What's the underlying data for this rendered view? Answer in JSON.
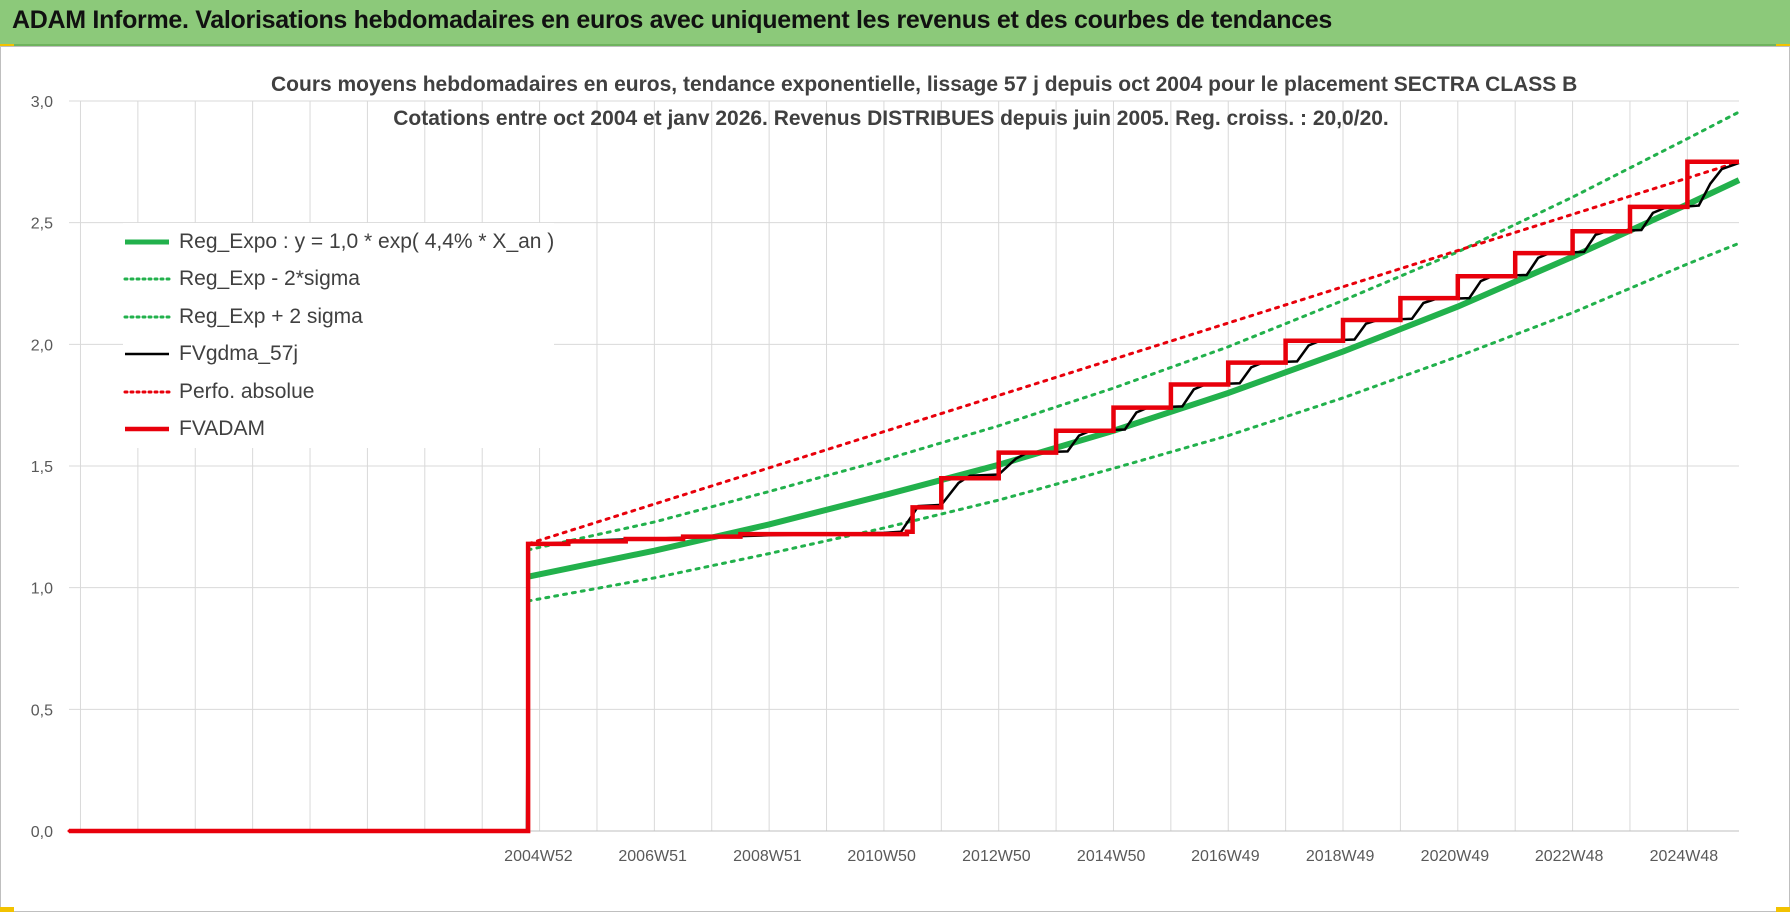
{
  "header": {
    "title": "ADAM Informe. Valorisations hebdomadaires en euros avec uniquement les revenus et des courbes de tendances"
  },
  "chart_data": {
    "type": "line",
    "title": "Cours moyens hebdomadaires en euros, tendance exponentielle, lissage 57 j depuis oct 2004 pour le placement SECTRA CLASS B",
    "subtitle": "Cotations entre oct 2004 et janv 2026. Revenus DISTRIBUES depuis juin 2005. Reg. croiss. : 20,0/20.",
    "xlabel": "",
    "ylabel": "",
    "ylim": [
      0,
      3
    ],
    "xlim": [
      1996.8,
      2025.9
    ],
    "y_ticks": [
      "0,0",
      "0,5",
      "1,0",
      "1,5",
      "2,0",
      "2,5",
      "3,0"
    ],
    "x_tick_labels": [
      {
        "label": "2004W52",
        "x": 2004.98
      },
      {
        "label": "2006W51",
        "x": 2006.97
      },
      {
        "label": "2008W51",
        "x": 2008.97
      },
      {
        "label": "2010W50",
        "x": 2010.96
      },
      {
        "label": "2012W50",
        "x": 2012.96
      },
      {
        "label": "2014W50",
        "x": 2014.96
      },
      {
        "label": "2016W49",
        "x": 2016.95
      },
      {
        "label": "2018W49",
        "x": 2018.95
      },
      {
        "label": "2020W49",
        "x": 2020.95
      },
      {
        "label": "2022W48",
        "x": 2022.94
      },
      {
        "label": "2024W48",
        "x": 2024.94
      }
    ],
    "grid": true,
    "legend_position": "top-left",
    "series": [
      {
        "name": "Reg_Expo : y = 1,0 * exp( 4,4% *  X_an )",
        "color": "#22b14c",
        "style": "solid-thick",
        "points": [
          [
            2004.8,
            1.045
          ],
          [
            2007.0,
            1.152
          ],
          [
            2009.0,
            1.26
          ],
          [
            2011.0,
            1.38
          ],
          [
            2013.0,
            1.505
          ],
          [
            2015.0,
            1.645
          ],
          [
            2017.0,
            1.8
          ],
          [
            2019.0,
            1.97
          ],
          [
            2021.0,
            2.155
          ],
          [
            2023.0,
            2.36
          ],
          [
            2025.0,
            2.575
          ],
          [
            2025.9,
            2.675
          ]
        ]
      },
      {
        "name": "Reg_Exp - 2*sigma",
        "color": "#22b14c",
        "style": "dotted",
        "points": [
          [
            2004.8,
            0.945
          ],
          [
            2007.0,
            1.04
          ],
          [
            2009.0,
            1.14
          ],
          [
            2011.0,
            1.245
          ],
          [
            2013.0,
            1.36
          ],
          [
            2015.0,
            1.49
          ],
          [
            2017.0,
            1.625
          ],
          [
            2019.0,
            1.78
          ],
          [
            2021.0,
            1.95
          ],
          [
            2023.0,
            2.13
          ],
          [
            2025.0,
            2.33
          ],
          [
            2025.9,
            2.415
          ]
        ]
      },
      {
        "name": "Reg_Exp + 2 sigma",
        "color": "#22b14c",
        "style": "dotted",
        "points": [
          [
            2004.8,
            1.155
          ],
          [
            2007.0,
            1.27
          ],
          [
            2009.0,
            1.395
          ],
          [
            2011.0,
            1.525
          ],
          [
            2013.0,
            1.665
          ],
          [
            2015.0,
            1.82
          ],
          [
            2017.0,
            1.99
          ],
          [
            2019.0,
            2.18
          ],
          [
            2021.0,
            2.38
          ],
          [
            2023.0,
            2.605
          ],
          [
            2025.0,
            2.845
          ],
          [
            2025.9,
            2.955
          ]
        ]
      },
      {
        "name": "FVgdma_57j",
        "color": "#000000",
        "style": "solid",
        "points": [
          [
            1996.8,
            0.0
          ],
          [
            2004.78,
            0.0
          ],
          [
            2004.8,
            1.18
          ],
          [
            2005.5,
            1.185
          ],
          [
            2006.0,
            1.195
          ],
          [
            2007.5,
            1.205
          ],
          [
            2009.0,
            1.215
          ],
          [
            2011.0,
            1.225
          ],
          [
            2011.3,
            1.23
          ],
          [
            2011.5,
            1.3
          ],
          [
            2011.6,
            1.335
          ],
          [
            2012.0,
            1.34
          ],
          [
            2012.3,
            1.43
          ],
          [
            2012.5,
            1.46
          ],
          [
            2013.0,
            1.465
          ],
          [
            2013.3,
            1.53
          ],
          [
            2013.5,
            1.555
          ],
          [
            2014.2,
            1.56
          ],
          [
            2014.4,
            1.625
          ],
          [
            2014.6,
            1.645
          ],
          [
            2015.2,
            1.65
          ],
          [
            2015.4,
            1.72
          ],
          [
            2015.6,
            1.74
          ],
          [
            2016.2,
            1.745
          ],
          [
            2016.4,
            1.815
          ],
          [
            2016.6,
            1.835
          ],
          [
            2017.2,
            1.84
          ],
          [
            2017.4,
            1.905
          ],
          [
            2017.6,
            1.925
          ],
          [
            2018.2,
            1.93
          ],
          [
            2018.4,
            1.995
          ],
          [
            2018.6,
            2.015
          ],
          [
            2019.2,
            2.02
          ],
          [
            2019.4,
            2.085
          ],
          [
            2019.6,
            2.1
          ],
          [
            2020.2,
            2.105
          ],
          [
            2020.4,
            2.17
          ],
          [
            2020.6,
            2.185
          ],
          [
            2021.2,
            2.19
          ],
          [
            2021.4,
            2.26
          ],
          [
            2021.6,
            2.28
          ],
          [
            2022.2,
            2.285
          ],
          [
            2022.4,
            2.355
          ],
          [
            2022.6,
            2.375
          ],
          [
            2023.2,
            2.38
          ],
          [
            2023.4,
            2.45
          ],
          [
            2023.6,
            2.465
          ],
          [
            2024.2,
            2.47
          ],
          [
            2024.4,
            2.54
          ],
          [
            2024.6,
            2.56
          ],
          [
            2025.2,
            2.57
          ],
          [
            2025.4,
            2.66
          ],
          [
            2025.6,
            2.72
          ],
          [
            2025.9,
            2.745
          ]
        ]
      },
      {
        "name": "Perfo. absolue",
        "color": "#e8000b",
        "style": "dotted",
        "points": [
          [
            1996.8,
            0.0
          ],
          [
            2004.8,
            0.0
          ],
          [
            2004.8,
            1.18
          ],
          [
            2025.9,
            2.75
          ]
        ]
      },
      {
        "name": "FVADAM",
        "color": "#e8000b",
        "style": "step-thick",
        "points": [
          [
            1996.8,
            0.0
          ],
          [
            2004.8,
            0.0
          ],
          [
            2004.8,
            1.18
          ],
          [
            2005.5,
            1.18
          ],
          [
            2005.5,
            1.19
          ],
          [
            2006.5,
            1.19
          ],
          [
            2006.5,
            1.2
          ],
          [
            2007.5,
            1.2
          ],
          [
            2007.5,
            1.21
          ],
          [
            2008.5,
            1.21
          ],
          [
            2008.5,
            1.22
          ],
          [
            2011.4,
            1.22
          ],
          [
            2011.4,
            1.23
          ],
          [
            2011.5,
            1.23
          ],
          [
            2011.5,
            1.33
          ],
          [
            2012.0,
            1.33
          ],
          [
            2012.0,
            1.45
          ],
          [
            2013.0,
            1.45
          ],
          [
            2013.0,
            1.555
          ],
          [
            2014.0,
            1.555
          ],
          [
            2014.0,
            1.645
          ],
          [
            2015.0,
            1.645
          ],
          [
            2015.0,
            1.74
          ],
          [
            2016.0,
            1.74
          ],
          [
            2016.0,
            1.835
          ],
          [
            2017.0,
            1.835
          ],
          [
            2017.0,
            1.925
          ],
          [
            2018.0,
            1.925
          ],
          [
            2018.0,
            2.015
          ],
          [
            2019.0,
            2.015
          ],
          [
            2019.0,
            2.1
          ],
          [
            2020.0,
            2.1
          ],
          [
            2020.0,
            2.19
          ],
          [
            2021.0,
            2.19
          ],
          [
            2021.0,
            2.28
          ],
          [
            2022.0,
            2.28
          ],
          [
            2022.0,
            2.375
          ],
          [
            2023.0,
            2.375
          ],
          [
            2023.0,
            2.465
          ],
          [
            2024.0,
            2.465
          ],
          [
            2024.0,
            2.565
          ],
          [
            2025.0,
            2.565
          ],
          [
            2025.0,
            2.75
          ],
          [
            2025.9,
            2.75
          ]
        ]
      }
    ]
  }
}
